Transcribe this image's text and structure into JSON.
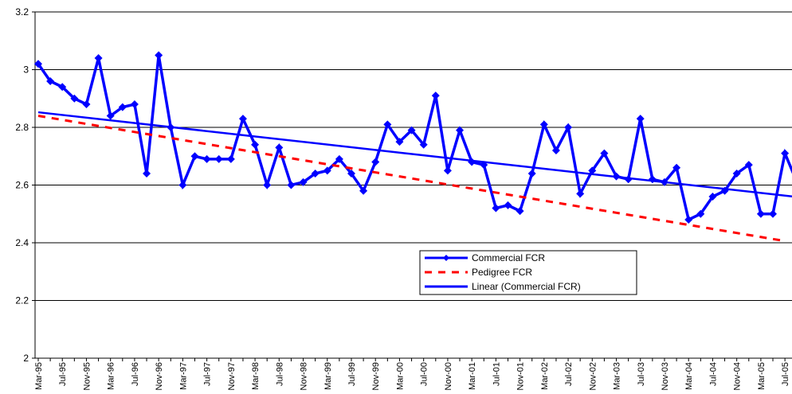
{
  "chart_data": {
    "type": "line",
    "categories": [
      "Mar-95",
      null,
      "Jul-95",
      null,
      "Nov-95",
      null,
      "Mar-96",
      null,
      "Jul-96",
      null,
      "Nov-96",
      null,
      "Mar-97",
      null,
      "Jul-97",
      null,
      "Nov-97",
      null,
      "Mar-98",
      null,
      "Jul-98",
      null,
      "Nov-98",
      null,
      "Mar-99",
      null,
      "Jul-99",
      null,
      "Nov-99",
      null,
      "Mar-00",
      null,
      "Jul-00",
      null,
      "Nov-00",
      null,
      "Mar-01",
      null,
      "Jul-01",
      null,
      "Nov-01",
      null,
      "Mar-02",
      null,
      "Jul-02",
      null,
      "Nov-02",
      null,
      "Mar-03",
      null,
      "Jul-03",
      null,
      "Nov-03",
      null,
      "Mar-04",
      null,
      "Jul-04",
      null,
      "Nov-04",
      null,
      "Mar-05",
      null,
      "Jul-05",
      null
    ],
    "series": [
      {
        "name": "Commercial FCR",
        "color": "#0000ff",
        "marker": "diamond",
        "values": [
          3.02,
          2.96,
          2.94,
          2.9,
          2.88,
          3.04,
          2.84,
          2.87,
          2.88,
          2.64,
          3.05,
          2.8,
          2.6,
          2.7,
          2.69,
          2.69,
          2.69,
          2.83,
          2.74,
          2.6,
          2.73,
          2.6,
          2.61,
          2.64,
          2.65,
          2.69,
          2.64,
          2.58,
          2.68,
          2.81,
          2.75,
          2.79,
          2.74,
          2.91,
          2.65,
          2.79,
          2.68,
          2.67,
          2.52,
          2.53,
          2.51,
          2.64,
          2.81,
          2.72,
          2.8,
          2.57,
          2.65,
          2.71,
          2.63,
          2.62,
          2.83,
          2.62,
          2.61,
          2.66,
          2.48,
          2.5,
          2.56,
          2.58,
          2.64,
          2.67,
          2.5,
          2.5,
          2.71,
          2.61
        ]
      },
      {
        "name": "Pedigree FCR",
        "color": "#ff0000",
        "dash": true,
        "values": [
          2.84,
          2.833,
          2.826,
          2.819,
          2.812,
          2.805,
          2.798,
          2.791,
          2.784,
          2.777,
          2.77,
          2.763,
          2.756,
          2.749,
          2.742,
          2.735,
          2.728,
          2.721,
          2.714,
          2.707,
          2.7,
          2.693,
          2.686,
          2.679,
          2.672,
          2.665,
          2.658,
          2.651,
          2.644,
          2.637,
          2.63,
          2.623,
          2.616,
          2.609,
          2.602,
          2.595,
          2.588,
          2.581,
          2.574,
          2.567,
          2.56,
          2.553,
          2.546,
          2.539,
          2.532,
          2.525,
          2.518,
          2.511,
          2.504,
          2.497,
          2.49,
          2.483,
          2.476,
          2.469,
          2.462,
          2.455,
          2.448,
          2.441,
          2.434,
          2.427,
          2.42,
          2.413,
          2.406,
          null
        ]
      }
    ],
    "trendline": {
      "name": "Linear (Commercial FCR)",
      "color": "#0000ff",
      "of_series": 0
    },
    "ylim": [
      2,
      3.2
    ],
    "yticks": [
      2,
      2.2,
      2.4,
      2.6,
      2.8,
      3,
      3.2
    ],
    "grid": true
  }
}
